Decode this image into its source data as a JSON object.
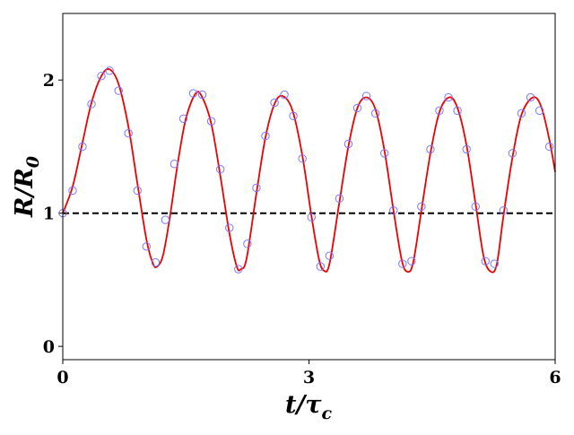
{
  "chart_data": {
    "type": "line-scatter",
    "xlabel": [
      "t/τ",
      "c"
    ],
    "ylabel": [
      "R/R",
      "0"
    ],
    "xlim": [
      0,
      6
    ],
    "ylim": [
      -0.1,
      2.5
    ],
    "xticks": [
      0,
      3,
      6
    ],
    "yticks": [
      0,
      1,
      2
    ],
    "reference_line": {
      "value": 1,
      "color": "#000000"
    },
    "series": [
      {
        "kind": "line",
        "color": "#ee0000",
        "x": [
          0,
          0.12,
          0.24,
          0.35,
          0.47,
          0.57,
          0.68,
          0.8,
          0.91,
          1.02,
          1.1,
          1.15,
          1.22,
          1.3,
          1.4,
          1.5,
          1.62,
          1.7,
          1.81,
          1.92,
          2.03,
          2.12,
          2.17,
          2.24,
          2.36,
          2.47,
          2.58,
          2.68,
          2.8,
          2.92,
          3.03,
          3.12,
          3.18,
          3.25,
          3.37,
          3.48,
          3.59,
          3.7,
          3.81,
          3.92,
          4.03,
          4.13,
          4.2,
          4.27,
          4.37,
          4.48,
          4.59,
          4.71,
          4.81,
          4.92,
          5.03,
          5.13,
          5.22,
          5.29,
          5.37,
          5.48,
          5.59,
          5.73,
          5.83,
          5.93,
          6.0
        ],
        "values": [
          1.0,
          1.2,
          1.53,
          1.83,
          2.03,
          2.08,
          1.97,
          1.65,
          1.22,
          0.8,
          0.62,
          0.6,
          0.68,
          0.95,
          1.37,
          1.71,
          1.9,
          1.87,
          1.67,
          1.28,
          0.85,
          0.6,
          0.58,
          0.66,
          1.15,
          1.57,
          1.82,
          1.88,
          1.77,
          1.43,
          0.98,
          0.66,
          0.57,
          0.62,
          1.08,
          1.5,
          1.79,
          1.87,
          1.78,
          1.47,
          1.02,
          0.65,
          0.56,
          0.63,
          1.02,
          1.45,
          1.76,
          1.87,
          1.79,
          1.51,
          1.07,
          0.67,
          0.56,
          0.62,
          0.98,
          1.42,
          1.74,
          1.87,
          1.8,
          1.55,
          1.31
        ]
      },
      {
        "kind": "scatter",
        "color": "#7777ff",
        "x": [
          0,
          0.12,
          0.24,
          0.35,
          0.47,
          0.57,
          0.68,
          0.8,
          0.91,
          1.02,
          1.13,
          1.25,
          1.36,
          1.47,
          1.59,
          1.7,
          1.81,
          1.92,
          2.03,
          2.14,
          2.25,
          2.36,
          2.47,
          2.58,
          2.7,
          2.81,
          2.92,
          3.03,
          3.14,
          3.25,
          3.37,
          3.48,
          3.59,
          3.7,
          3.81,
          3.92,
          4.03,
          4.14,
          4.25,
          4.37,
          4.48,
          4.59,
          4.7,
          4.81,
          4.92,
          5.03,
          5.15,
          5.26,
          5.37,
          5.48,
          5.59,
          5.7,
          5.81,
          5.93
        ],
        "values": [
          1.0,
          1.17,
          1.5,
          1.82,
          2.03,
          2.07,
          1.92,
          1.6,
          1.17,
          0.75,
          0.63,
          0.95,
          1.37,
          1.71,
          1.9,
          1.89,
          1.69,
          1.33,
          0.89,
          0.58,
          0.77,
          1.19,
          1.58,
          1.83,
          1.89,
          1.73,
          1.41,
          0.97,
          0.6,
          0.68,
          1.11,
          1.52,
          1.79,
          1.88,
          1.75,
          1.45,
          1.02,
          0.62,
          0.64,
          1.05,
          1.48,
          1.77,
          1.87,
          1.77,
          1.48,
          1.05,
          0.64,
          0.62,
          1.02,
          1.45,
          1.75,
          1.87,
          1.77,
          1.5
        ]
      }
    ]
  }
}
